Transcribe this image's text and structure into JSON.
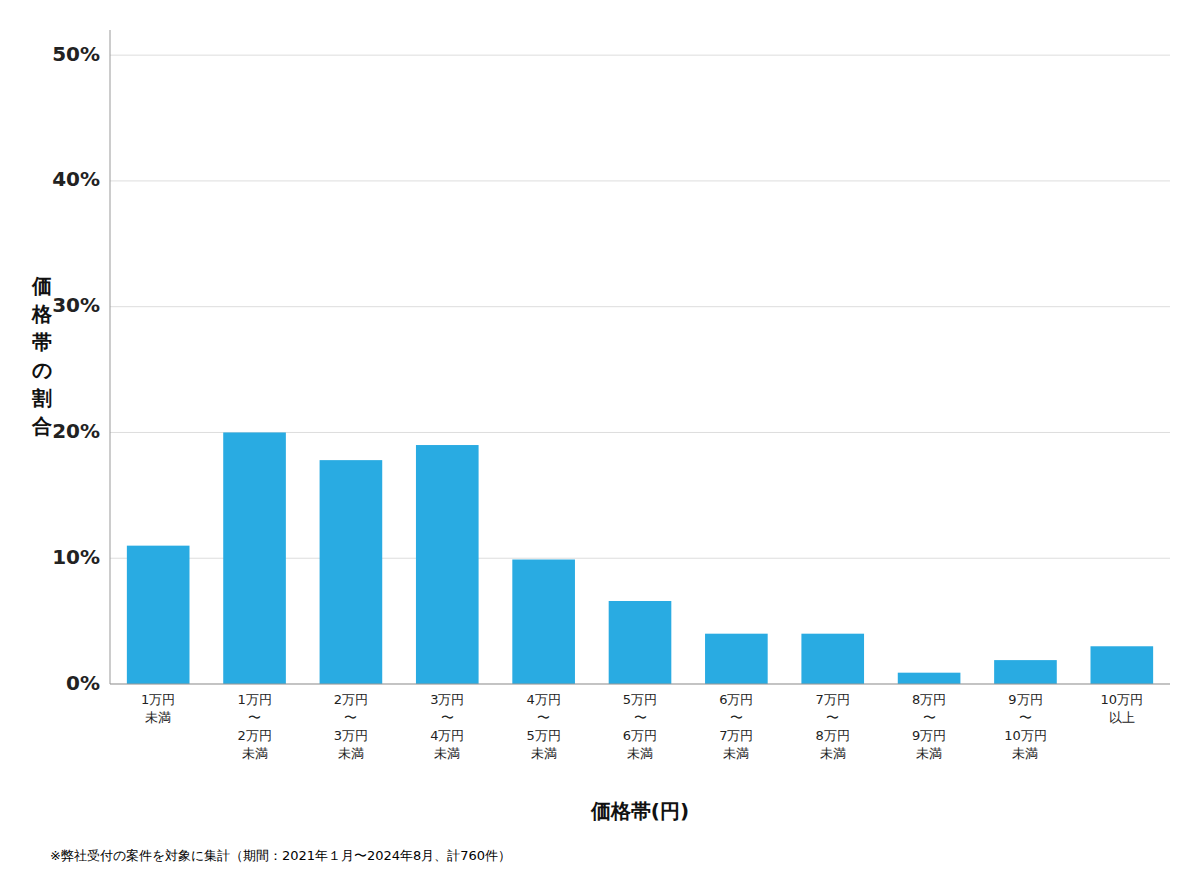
{
  "chart_data": {
    "type": "bar",
    "ylabel": "価格帯の割合",
    "xlabel": "価格帯(円)",
    "annotations": [
      "※弊社受付の案件を対象に集計（期間：2021年１月〜2024年8月、計760件）"
    ],
    "categories": [
      "1万円\n未満",
      "1万円\n〜\n2万円\n未満",
      "2万円\n〜\n3万円\n未満",
      "3万円\n〜\n4万円\n未満",
      "4万円\n〜\n5万円\n未満",
      "5万円\n〜\n6万円\n未満",
      "6万円\n〜\n7万円\n未満",
      "7万円\n〜\n8万円\n未満",
      "8万円\n〜\n9万円\n未満",
      "9万円\n〜\n10万円\n未満",
      "10万円\n以上"
    ],
    "values": [
      0.11,
      0.2,
      0.178,
      0.19,
      0.099,
      0.066,
      0.04,
      0.04,
      0.009,
      0.019,
      0.03
    ],
    "color": "#29ABE2",
    "ylim": [
      0,
      0.52
    ],
    "yticks": [
      {
        "value": 0.0,
        "label": "0%"
      },
      {
        "value": 0.1,
        "label": "10%"
      },
      {
        "value": 0.2,
        "label": "20%"
      },
      {
        "value": 0.3,
        "label": "30%"
      },
      {
        "value": 0.4,
        "label": "40%"
      },
      {
        "value": 0.5,
        "label": "50%"
      }
    ],
    "grid": true
  }
}
